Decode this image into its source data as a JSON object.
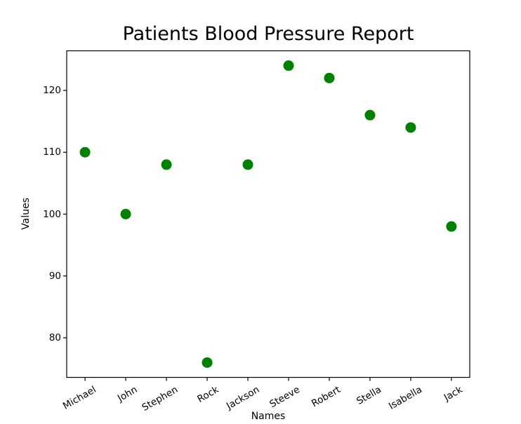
{
  "chart_data": {
    "type": "scatter",
    "title": "Patients Blood Pressure Report",
    "xlabel": "Names",
    "ylabel": "Values",
    "categories": [
      "Michael",
      "John",
      "Stephen",
      "Rock",
      "Jackson",
      "Steeve",
      "Robert",
      "Stella",
      "Isabella",
      "Jack"
    ],
    "values": [
      110,
      100,
      108,
      76,
      108,
      124,
      122,
      116,
      114,
      98
    ],
    "yticks": [
      80,
      90,
      100,
      110,
      120
    ],
    "ylim": [
      73.6,
      126.4
    ],
    "xlim": [
      -0.45,
      9.45
    ],
    "marker_color": "#008000",
    "marker_diameter_px": 15,
    "x_tick_rotation_deg": 30,
    "axis_color": "#000000",
    "background_color": "#ffffff",
    "grid": false,
    "legend": false
  }
}
